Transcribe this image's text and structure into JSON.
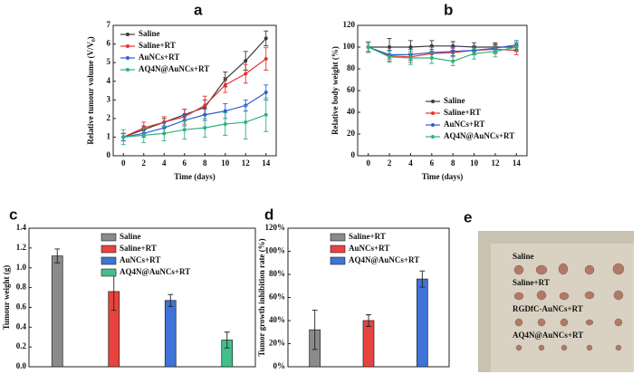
{
  "chart_data": [
    {
      "type": "line",
      "panel_label": "a",
      "xlabel": "Time (days)",
      "ylabel": "Relative tumour volume (V/V₀)",
      "x": [
        0,
        2,
        4,
        6,
        8,
        10,
        12,
        14
      ],
      "xlim": [
        -1,
        15
      ],
      "xticks": [
        0,
        2,
        4,
        6,
        8,
        10,
        12,
        14
      ],
      "ylim": [
        0,
        7
      ],
      "yticks": [
        0,
        1,
        2,
        3,
        4,
        5,
        6,
        7
      ],
      "legend": "upper left",
      "series": [
        {
          "name": "Saline",
          "color": "#3a3a3a",
          "values": [
            1,
            1.4,
            1.8,
            2.2,
            2.6,
            4.1,
            5.1,
            6.3
          ],
          "errors": [
            0.2,
            0.2,
            0.2,
            0.3,
            0.4,
            0.4,
            0.5,
            0.4
          ]
        },
        {
          "name": "Saline+RT",
          "color": "#e8322e",
          "values": [
            1,
            1.5,
            1.8,
            2.1,
            2.7,
            3.8,
            4.4,
            5.2
          ],
          "errors": [
            0.2,
            0.3,
            0.3,
            0.4,
            0.5,
            0.4,
            0.5,
            0.6
          ]
        },
        {
          "name": "AuNCs+RT",
          "color": "#2f5fd0",
          "values": [
            1,
            1.2,
            1.5,
            1.9,
            2.2,
            2.4,
            2.7,
            3.4
          ],
          "errors": [
            0.2,
            0.2,
            0.3,
            0.3,
            0.3,
            0.4,
            0.3,
            0.4
          ]
        },
        {
          "name": "AQ4N@AuNCs+RT",
          "color": "#2db37a",
          "values": [
            1,
            1.1,
            1.2,
            1.4,
            1.5,
            1.7,
            1.8,
            2.2
          ],
          "errors": [
            0.4,
            0.4,
            0.4,
            0.5,
            0.5,
            0.6,
            0.9,
            0.9
          ]
        }
      ]
    },
    {
      "type": "line",
      "panel_label": "b",
      "xlabel": "Time (days)",
      "ylabel": "Relative body weight (%)",
      "x": [
        0,
        2,
        4,
        6,
        8,
        10,
        12,
        14
      ],
      "xlim": [
        -1,
        15
      ],
      "xticks": [
        0,
        2,
        4,
        6,
        8,
        10,
        12,
        14
      ],
      "ylim": [
        0,
        120
      ],
      "yticks": [
        0,
        20,
        40,
        60,
        80,
        100,
        120
      ],
      "legend": "lower right",
      "series": [
        {
          "name": "Saline",
          "color": "#3a3a3a",
          "values": [
            100,
            100,
            100,
            101,
            101,
            100,
            100,
            100
          ],
          "errors": [
            5,
            8,
            6,
            5,
            4,
            4,
            4,
            4
          ]
        },
        {
          "name": "Saline+RT",
          "color": "#e8322e",
          "values": [
            100,
            92,
            91,
            94,
            95,
            97,
            98,
            97
          ],
          "errors": [
            4,
            5,
            5,
            4,
            4,
            4,
            4,
            4
          ]
        },
        {
          "name": "AuNCs+RT",
          "color": "#2f5fd0",
          "values": [
            100,
            93,
            93,
            95,
            96,
            97,
            99,
            102
          ],
          "errors": [
            5,
            4,
            5,
            5,
            4,
            4,
            4,
            4
          ]
        },
        {
          "name": "AQ4N@AuNCs+RT",
          "color": "#2db37a",
          "values": [
            100,
            91,
            90,
            90,
            87,
            94,
            96,
            100
          ],
          "errors": [
            5,
            5,
            6,
            5,
            4,
            5,
            5,
            4
          ]
        }
      ]
    },
    {
      "type": "bar",
      "panel_label": "c",
      "ylabel": "Tumour weight (g)",
      "categories": [
        "Saline",
        "Saline+RT",
        "AuNCs+RT",
        "AQ4N@AuNCs+RT"
      ],
      "colors": [
        "#8a8a8a",
        "#e8433e",
        "#3f73d8",
        "#43bf8a"
      ],
      "values": [
        1.12,
        0.76,
        0.67,
        0.27
      ],
      "errors": [
        0.07,
        0.19,
        0.06,
        0.08
      ],
      "ylim": [
        0,
        1.4
      ],
      "yticks": [
        {
          "value": 0,
          "label": "0.0"
        },
        0.2,
        0.4,
        0.6,
        0.8,
        {
          "value": 1,
          "label": "1.0"
        },
        1.2,
        1.4
      ],
      "legend": "upper right"
    },
    {
      "type": "bar",
      "panel_label": "d",
      "ylabel": "Tumor growth inhibition rate (%)",
      "categories": [
        "Saline+RT",
        "AuNCs+RT",
        "AQ4N@AuNCs+RT"
      ],
      "colors": [
        "#8a8a8a",
        "#e8433e",
        "#3f73d8"
      ],
      "values": [
        32,
        40,
        76
      ],
      "errors": [
        17,
        5,
        7
      ],
      "ylim": [
        0,
        120
      ],
      "yticks": [
        {
          "value": 0,
          "label": "0%"
        },
        {
          "value": 20,
          "label": "20%"
        },
        {
          "value": 40,
          "label": "40%"
        },
        {
          "value": 60,
          "label": "60%"
        },
        {
          "value": 80,
          "label": "80%"
        },
        {
          "value": 100,
          "label": "100%"
        },
        {
          "value": 120,
          "label": "120%"
        }
      ],
      "legend": "upper center"
    }
  ],
  "photo": {
    "panel_label": "e",
    "rows": [
      "Saline",
      "Saline+RT",
      "RGDfC-AuNCs+RT",
      "AQ4N@AuNCs+RT"
    ]
  }
}
